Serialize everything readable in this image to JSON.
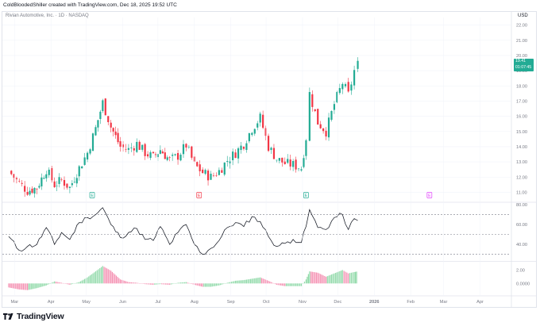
{
  "header": {
    "attribution": "ColdBloodedShiller created with TradingView.com, Dec 18, 2025 19:52 UTC"
  },
  "chart": {
    "symbol_title": "Rivian Automotive, Inc. · 1D · NASDAQ",
    "currency": "USD",
    "last_price": "19.41",
    "countdown": "01:07:45"
  },
  "branding": {
    "name": "TradingView"
  },
  "chart_data": [
    {
      "type": "candlestick",
      "title": "Rivian Automotive, Inc. · 1D · NASDAQ",
      "ylabel": "USD",
      "ylim": [
        10.5,
        22.5
      ],
      "y_ticks": [
        "22.00",
        "21.00",
        "20.00",
        "19.00",
        "18.00",
        "17.00",
        "16.00",
        "15.00",
        "14.00",
        "13.00",
        "12.00",
        "11.00"
      ],
      "x_ticks": [
        "Mar",
        "Apr",
        "May",
        "Jun",
        "Jul",
        "Aug",
        "Sep",
        "Oct",
        "Nov",
        "Dec",
        "2026",
        "Feb",
        "Mar",
        "Apr"
      ],
      "close_approx": [
        {
          "date": "2025-02-24",
          "close": 12.4
        },
        {
          "date": "2025-03-05",
          "close": 11.6
        },
        {
          "date": "2025-03-12",
          "close": 11.1
        },
        {
          "date": "2025-03-20",
          "close": 11.3
        },
        {
          "date": "2025-03-28",
          "close": 12.5
        },
        {
          "date": "2025-04-04",
          "close": 11.5
        },
        {
          "date": "2025-04-10",
          "close": 11.8
        },
        {
          "date": "2025-04-17",
          "close": 11.3
        },
        {
          "date": "2025-04-25",
          "close": 12.6
        },
        {
          "date": "2025-05-02",
          "close": 13.6
        },
        {
          "date": "2025-05-09",
          "close": 15.2
        },
        {
          "date": "2025-05-15",
          "close": 16.9
        },
        {
          "date": "2025-05-22",
          "close": 15.3
        },
        {
          "date": "2025-05-30",
          "close": 14.0
        },
        {
          "date": "2025-06-06",
          "close": 13.8
        },
        {
          "date": "2025-06-13",
          "close": 14.2
        },
        {
          "date": "2025-06-20",
          "close": 13.6
        },
        {
          "date": "2025-06-27",
          "close": 13.3
        },
        {
          "date": "2025-07-03",
          "close": 13.8
        },
        {
          "date": "2025-07-11",
          "close": 13.1
        },
        {
          "date": "2025-07-18",
          "close": 13.4
        },
        {
          "date": "2025-07-25",
          "close": 14.1
        },
        {
          "date": "2025-08-01",
          "close": 12.8
        },
        {
          "date": "2025-08-08",
          "close": 12.3
        },
        {
          "date": "2025-08-15",
          "close": 12.0
        },
        {
          "date": "2025-08-22",
          "close": 12.4
        },
        {
          "date": "2025-08-29",
          "close": 13.1
        },
        {
          "date": "2025-09-05",
          "close": 13.6
        },
        {
          "date": "2025-09-12",
          "close": 14.2
        },
        {
          "date": "2025-09-19",
          "close": 15.2
        },
        {
          "date": "2025-09-26",
          "close": 15.9
        },
        {
          "date": "2025-10-03",
          "close": 14.0
        },
        {
          "date": "2025-10-10",
          "close": 13.2
        },
        {
          "date": "2025-10-17",
          "close": 12.9
        },
        {
          "date": "2025-10-24",
          "close": 12.8
        },
        {
          "date": "2025-10-31",
          "close": 12.6
        },
        {
          "date": "2025-11-04",
          "close": 14.6
        },
        {
          "date": "2025-11-07",
          "close": 17.5
        },
        {
          "date": "2025-11-14",
          "close": 15.6
        },
        {
          "date": "2025-11-21",
          "close": 15.0
        },
        {
          "date": "2025-11-28",
          "close": 16.8
        },
        {
          "date": "2025-12-05",
          "close": 18.2
        },
        {
          "date": "2025-12-10",
          "close": 17.4
        },
        {
          "date": "2025-12-15",
          "close": 19.0
        },
        {
          "date": "2025-12-18",
          "close": 19.41
        }
      ],
      "events": [
        {
          "label": "E",
          "date": "2025-05-06",
          "color": "#22ab94"
        },
        {
          "label": "E",
          "date": "2025-08-05",
          "color": "#f23645"
        },
        {
          "label": "E",
          "date": "2025-11-04",
          "color": "#22ab94"
        },
        {
          "label": "E",
          "date": "2026-02-17",
          "color": "#e040fb"
        }
      ]
    },
    {
      "type": "line",
      "title": "",
      "ylim": [
        25,
        80
      ],
      "y_ticks": [
        "80.00",
        "60.00",
        "40.00"
      ],
      "bands": [
        70,
        50,
        30
      ],
      "values_approx": [
        {
          "date": "2025-02-24",
          "value": 48
        },
        {
          "date": "2025-03-05",
          "value": 34
        },
        {
          "date": "2025-03-12",
          "value": 38
        },
        {
          "date": "2025-03-20",
          "value": 40
        },
        {
          "date": "2025-03-28",
          "value": 57
        },
        {
          "date": "2025-04-04",
          "value": 40
        },
        {
          "date": "2025-04-10",
          "value": 52
        },
        {
          "date": "2025-04-17",
          "value": 45
        },
        {
          "date": "2025-04-25",
          "value": 62
        },
        {
          "date": "2025-05-02",
          "value": 67
        },
        {
          "date": "2025-05-09",
          "value": 70
        },
        {
          "date": "2025-05-15",
          "value": 77
        },
        {
          "date": "2025-05-22",
          "value": 60
        },
        {
          "date": "2025-05-30",
          "value": 47
        },
        {
          "date": "2025-06-06",
          "value": 52
        },
        {
          "date": "2025-06-13",
          "value": 56
        },
        {
          "date": "2025-06-20",
          "value": 45
        },
        {
          "date": "2025-06-27",
          "value": 44
        },
        {
          "date": "2025-07-03",
          "value": 58
        },
        {
          "date": "2025-07-11",
          "value": 40
        },
        {
          "date": "2025-07-18",
          "value": 52
        },
        {
          "date": "2025-07-25",
          "value": 60
        },
        {
          "date": "2025-08-01",
          "value": 40
        },
        {
          "date": "2025-08-08",
          "value": 30
        },
        {
          "date": "2025-08-15",
          "value": 36
        },
        {
          "date": "2025-08-22",
          "value": 44
        },
        {
          "date": "2025-08-29",
          "value": 57
        },
        {
          "date": "2025-09-05",
          "value": 62
        },
        {
          "date": "2025-09-12",
          "value": 58
        },
        {
          "date": "2025-09-19",
          "value": 68
        },
        {
          "date": "2025-09-26",
          "value": 63
        },
        {
          "date": "2025-10-03",
          "value": 48
        },
        {
          "date": "2025-10-10",
          "value": 38
        },
        {
          "date": "2025-10-17",
          "value": 41
        },
        {
          "date": "2025-10-24",
          "value": 45
        },
        {
          "date": "2025-10-31",
          "value": 42
        },
        {
          "date": "2025-11-04",
          "value": 58
        },
        {
          "date": "2025-11-07",
          "value": 75
        },
        {
          "date": "2025-11-14",
          "value": 57
        },
        {
          "date": "2025-11-21",
          "value": 55
        },
        {
          "date": "2025-11-28",
          "value": 67
        },
        {
          "date": "2025-12-05",
          "value": 70
        },
        {
          "date": "2025-12-10",
          "value": 55
        },
        {
          "date": "2025-12-15",
          "value": 66
        },
        {
          "date": "2025-12-18",
          "value": 64
        }
      ]
    },
    {
      "type": "bar",
      "title": "",
      "ylim": [
        -1.5,
        3.0
      ],
      "y_ticks": [
        "2.00",
        "0.0000"
      ],
      "values_approx": [
        {
          "date": "2025-02-24",
          "value": -0.6
        },
        {
          "date": "2025-03-05",
          "value": -0.9
        },
        {
          "date": "2025-03-12",
          "value": -1.0
        },
        {
          "date": "2025-03-20",
          "value": -0.7
        },
        {
          "date": "2025-03-28",
          "value": -0.3
        },
        {
          "date": "2025-04-04",
          "value": 0.3
        },
        {
          "date": "2025-04-10",
          "value": 0.1
        },
        {
          "date": "2025-04-17",
          "value": -0.2
        },
        {
          "date": "2025-04-25",
          "value": 0.2
        },
        {
          "date": "2025-05-02",
          "value": 0.9
        },
        {
          "date": "2025-05-09",
          "value": 1.8
        },
        {
          "date": "2025-05-15",
          "value": 2.6
        },
        {
          "date": "2025-05-22",
          "value": 1.9
        },
        {
          "date": "2025-05-30",
          "value": 0.6
        },
        {
          "date": "2025-06-06",
          "value": 0.2
        },
        {
          "date": "2025-06-13",
          "value": 0.1
        },
        {
          "date": "2025-06-20",
          "value": -0.1
        },
        {
          "date": "2025-06-27",
          "value": -0.2
        },
        {
          "date": "2025-07-03",
          "value": -0.1
        },
        {
          "date": "2025-07-11",
          "value": -0.2
        },
        {
          "date": "2025-07-18",
          "value": 0.1
        },
        {
          "date": "2025-07-25",
          "value": 0.2
        },
        {
          "date": "2025-08-01",
          "value": -0.2
        },
        {
          "date": "2025-08-08",
          "value": -0.5
        },
        {
          "date": "2025-08-15",
          "value": -0.5
        },
        {
          "date": "2025-08-22",
          "value": -0.3
        },
        {
          "date": "2025-08-29",
          "value": 0.1
        },
        {
          "date": "2025-09-05",
          "value": 0.4
        },
        {
          "date": "2025-09-12",
          "value": 0.5
        },
        {
          "date": "2025-09-19",
          "value": 0.7
        },
        {
          "date": "2025-09-26",
          "value": 0.9
        },
        {
          "date": "2025-10-03",
          "value": 0.4
        },
        {
          "date": "2025-10-10",
          "value": -0.2
        },
        {
          "date": "2025-10-17",
          "value": -0.4
        },
        {
          "date": "2025-10-24",
          "value": -0.4
        },
        {
          "date": "2025-10-31",
          "value": -0.4
        },
        {
          "date": "2025-11-04",
          "value": 0.6
        },
        {
          "date": "2025-11-07",
          "value": 1.8
        },
        {
          "date": "2025-11-14",
          "value": 1.6
        },
        {
          "date": "2025-11-21",
          "value": 1.0
        },
        {
          "date": "2025-11-28",
          "value": 1.5
        },
        {
          "date": "2025-12-05",
          "value": 2.0
        },
        {
          "date": "2025-12-10",
          "value": 1.5
        },
        {
          "date": "2025-12-15",
          "value": 1.7
        },
        {
          "date": "2025-12-18",
          "value": 1.8
        }
      ]
    }
  ],
  "colors": {
    "up": "#22ab94",
    "down": "#f23645",
    "hist_up": "#8fd9a8",
    "hist_down": "#f48fb1",
    "rsi_line": "#131722",
    "grid": "#f0f3fa",
    "axis_text": "#787b86",
    "price_tag": "#22ab94"
  }
}
